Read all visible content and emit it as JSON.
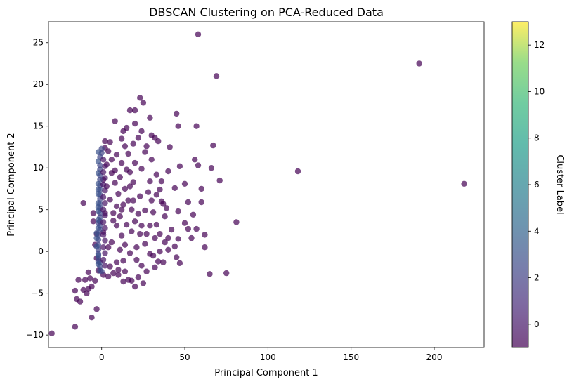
{
  "chart_data": {
    "type": "scatter",
    "title": "DBSCAN Clustering on PCA-Reduced Data",
    "xlabel": "Principal Component 1",
    "ylabel": "Principal Component 2",
    "xlim": [
      -32,
      230
    ],
    "ylim": [
      -11.5,
      27.5
    ],
    "xticks": [
      0,
      50,
      100,
      150,
      200
    ],
    "yticks": [
      -10,
      -5,
      0,
      5,
      10,
      15,
      20,
      25
    ],
    "grid": false,
    "colormap": "viridis",
    "marker_alpha": 0.7,
    "colorbar": {
      "label": "Cluster Label",
      "range": [
        -1,
        13
      ],
      "ticks": [
        0,
        2,
        4,
        6,
        8,
        10,
        12
      ]
    },
    "series": [
      {
        "label_value": -1,
        "color": "#440154",
        "points": [
          [
            58,
            26
          ],
          [
            69,
            21
          ],
          [
            191,
            22.5
          ],
          [
            118,
            9.6
          ],
          [
            218,
            8.1
          ],
          [
            81,
            3.5
          ],
          [
            75,
            -2.6
          ],
          [
            65,
            -2.7
          ],
          [
            57,
            15
          ],
          [
            45,
            16.5
          ],
          [
            46,
            15
          ],
          [
            67,
            12.7
          ],
          [
            56,
            11
          ],
          [
            66,
            10
          ],
          [
            71,
            8.5
          ],
          [
            60,
            7.5
          ],
          [
            58,
            10.3
          ],
          [
            47,
            10.2
          ],
          [
            40,
            9.6
          ],
          [
            50,
            8.1
          ],
          [
            25,
            17.8
          ],
          [
            23,
            18.4
          ],
          [
            17,
            16.9
          ],
          [
            20,
            16.9
          ],
          [
            29,
            16
          ],
          [
            32,
            13.6
          ],
          [
            15,
            14.8
          ],
          [
            20,
            15.3
          ],
          [
            30,
            13.9
          ],
          [
            34,
            13.2
          ],
          [
            41,
            12.5
          ],
          [
            13,
            14.4
          ],
          [
            8,
            15.6
          ],
          [
            12,
            13.5
          ],
          [
            44,
            7.6
          ],
          [
            46,
            4.8
          ],
          [
            60,
            5.9
          ],
          [
            55,
            4.4
          ],
          [
            52,
            5.9
          ],
          [
            50,
            3.4
          ],
          [
            62,
            0.5
          ],
          [
            57,
            2.7
          ],
          [
            62,
            2
          ],
          [
            54,
            1.6
          ],
          [
            46,
            1.5
          ],
          [
            42,
            2.6
          ],
          [
            45,
            -0.7
          ],
          [
            52,
            2.7
          ],
          [
            47,
            -1.4
          ],
          [
            44,
            0.6
          ],
          [
            38,
            4.2
          ],
          [
            39,
            5.2
          ],
          [
            36,
            6
          ],
          [
            33,
            6.8
          ],
          [
            29,
            8.4
          ],
          [
            24,
            9.9
          ],
          [
            26,
            11.9
          ],
          [
            36,
            8.4
          ],
          [
            40,
            1.6
          ],
          [
            34,
            -1.2
          ],
          [
            31,
            -0.5
          ],
          [
            27,
            2.1
          ],
          [
            24,
            3.1
          ],
          [
            22,
            4.5
          ],
          [
            19,
            6.1
          ],
          [
            17,
            7.8
          ],
          [
            15,
            9.8
          ],
          [
            25,
            -3.8
          ],
          [
            20,
            -4.2
          ],
          [
            18,
            -3.5
          ],
          [
            13,
            -3.6
          ],
          [
            10,
            -2.8
          ],
          [
            -4,
            -3.5
          ],
          [
            -7,
            -3.2
          ],
          [
            -8,
            -2.5
          ],
          [
            -10,
            -3.4
          ],
          [
            -11,
            -4.6
          ],
          [
            -14,
            -3.4
          ],
          [
            -16,
            -4.7
          ],
          [
            -15,
            -5.7
          ],
          [
            -13,
            -6
          ],
          [
            -8,
            -4.5
          ],
          [
            -9,
            -5
          ],
          [
            -6,
            -4.2
          ],
          [
            -3,
            -6.9
          ],
          [
            -6,
            -7.9
          ],
          [
            -16,
            -9
          ],
          [
            -30,
            -9.8
          ],
          [
            -11,
            5.8
          ],
          [
            -5,
            4.6
          ],
          [
            -5,
            3.6
          ],
          [
            -3,
            2.1
          ],
          [
            -4,
            0.8
          ],
          [
            -3,
            -0.8
          ],
          [
            -2,
            -2.3
          ],
          [
            1,
            -2.8
          ],
          [
            4,
            -3
          ],
          [
            7,
            -2.6
          ],
          [
            10,
            -2.2
          ],
          [
            14,
            -2.4
          ],
          [
            4,
            12
          ],
          [
            6,
            11
          ],
          [
            8,
            9.7
          ],
          [
            11,
            8.9
          ],
          [
            14,
            7.5
          ],
          [
            16,
            6.1
          ],
          [
            18,
            5
          ],
          [
            20,
            3.6
          ],
          [
            23,
            2.1
          ],
          [
            26,
            0.9
          ],
          [
            29,
            -0.3
          ],
          [
            32,
            -1.9
          ],
          [
            21,
            -1
          ],
          [
            17,
            -0.2
          ],
          [
            14,
            0.8
          ],
          [
            12,
            1.9
          ],
          [
            9,
            3.1
          ],
          [
            7,
            4.6
          ],
          [
            5,
            6.2
          ],
          [
            3,
            7.8
          ],
          [
            3,
            10.4
          ],
          [
            2,
            12.4
          ],
          [
            5,
            13.1
          ],
          [
            2,
            13.2
          ],
          [
            1,
            2.3
          ],
          [
            6,
            1.1
          ],
          [
            9,
            -1.3
          ],
          [
            11,
            0.2
          ],
          [
            7,
            3.7
          ],
          [
            11,
            4.2
          ],
          [
            13,
            5.6
          ],
          [
            10,
            6.9
          ],
          [
            8,
            8.2
          ],
          [
            12,
            10.6
          ],
          [
            16,
            11.7
          ],
          [
            19,
            12.9
          ],
          [
            22,
            13.6
          ],
          [
            24,
            14.4
          ],
          [
            27,
            12.6
          ],
          [
            30,
            11
          ],
          [
            33,
            9.2
          ],
          [
            35,
            7.4
          ],
          [
            37,
            5.7
          ],
          [
            28,
            7.1
          ],
          [
            31,
            4.7
          ],
          [
            33,
            3.2
          ],
          [
            35,
            2.1
          ],
          [
            38,
            1.1
          ],
          [
            40,
            0.2
          ],
          [
            27,
            -2.4
          ],
          [
            22,
            -3.1
          ],
          [
            16,
            -3.4
          ],
          [
            9,
            5.4
          ],
          [
            6,
            9.4
          ],
          [
            4,
            0.5
          ],
          [
            2,
            4.6
          ],
          [
            1,
            8.6
          ],
          [
            5,
            -1.8
          ],
          [
            13,
            -1.1
          ],
          [
            18,
            2.4
          ],
          [
            21,
            0.5
          ],
          [
            24,
            -1.7
          ],
          [
            15,
            3.2
          ],
          [
            12,
            5
          ],
          [
            19,
            8.3
          ],
          [
            23,
            6.6
          ],
          [
            26,
            4.9
          ],
          [
            29,
            3.1
          ],
          [
            32,
            1.6
          ],
          [
            35,
            0
          ],
          [
            37,
            -1.3
          ],
          [
            30,
            6.1
          ],
          [
            20,
            10.6
          ],
          [
            17,
            9.5
          ],
          [
            14,
            12.6
          ],
          [
            9,
            11.6
          ]
        ]
      },
      {
        "label_value": 1,
        "color": "#404688",
        "points": [
          [
            -1,
            11.3
          ],
          [
            -1,
            9.8
          ],
          [
            -1,
            8.6
          ],
          [
            -1,
            7.4
          ],
          [
            -1,
            6.3
          ],
          [
            -1,
            5.2
          ],
          [
            -1,
            4.1
          ],
          [
            -1,
            3.1
          ],
          [
            -2,
            2
          ],
          [
            -2,
            0.8
          ],
          [
            -2,
            -0.3
          ],
          [
            -1,
            -1.3
          ],
          [
            -1,
            -2.3
          ],
          [
            0,
            -2.4
          ],
          [
            -1,
            10.3
          ],
          [
            -1,
            9.1
          ],
          [
            -1,
            7.9
          ],
          [
            -1,
            6.8
          ],
          [
            -1,
            5.7
          ],
          [
            -1,
            4.6
          ],
          [
            -1,
            3.6
          ],
          [
            -1,
            2.6
          ],
          [
            -2,
            1.4
          ],
          [
            -2,
            0.2
          ],
          [
            -2,
            -0.8
          ],
          [
            -1,
            -1.8
          ],
          [
            0,
            12.3
          ],
          [
            0,
            11.8
          ],
          [
            -2,
            3.4
          ],
          [
            -2,
            -1.2
          ]
        ]
      },
      {
        "label_value": 2,
        "color": "#3a528b",
        "points": [
          [
            -2,
            10.8
          ],
          [
            -2,
            9.4
          ],
          [
            -2,
            8.1
          ],
          [
            -2,
            6.9
          ],
          [
            -2,
            5.8
          ],
          [
            -2,
            4.8
          ],
          [
            -2,
            3.8
          ],
          [
            -2,
            2.8
          ],
          [
            -3,
            1.6
          ],
          [
            -3,
            0.6
          ],
          [
            -2,
            -0.5
          ],
          [
            -2,
            -1.5
          ],
          [
            -2,
            11.9
          ],
          [
            -2,
            7.4
          ],
          [
            -2,
            5.3
          ],
          [
            -3,
            2.2
          ]
        ]
      },
      {
        "label_value": 0,
        "color": "#471365",
        "points": [
          [
            1,
            11
          ],
          [
            1,
            9.5
          ],
          [
            1,
            8
          ],
          [
            1,
            6.5
          ],
          [
            1,
            5
          ],
          [
            1,
            3.5
          ],
          [
            1,
            2
          ],
          [
            1,
            0.5
          ],
          [
            1,
            -1
          ],
          [
            2,
            10.2
          ],
          [
            2,
            8.8
          ],
          [
            2,
            7.3
          ],
          [
            2,
            5.8
          ],
          [
            2,
            4.3
          ],
          [
            2,
            2.8
          ],
          [
            2,
            1.3
          ],
          [
            2,
            -0.2
          ],
          [
            2,
            -1.7
          ]
        ]
      }
    ]
  }
}
